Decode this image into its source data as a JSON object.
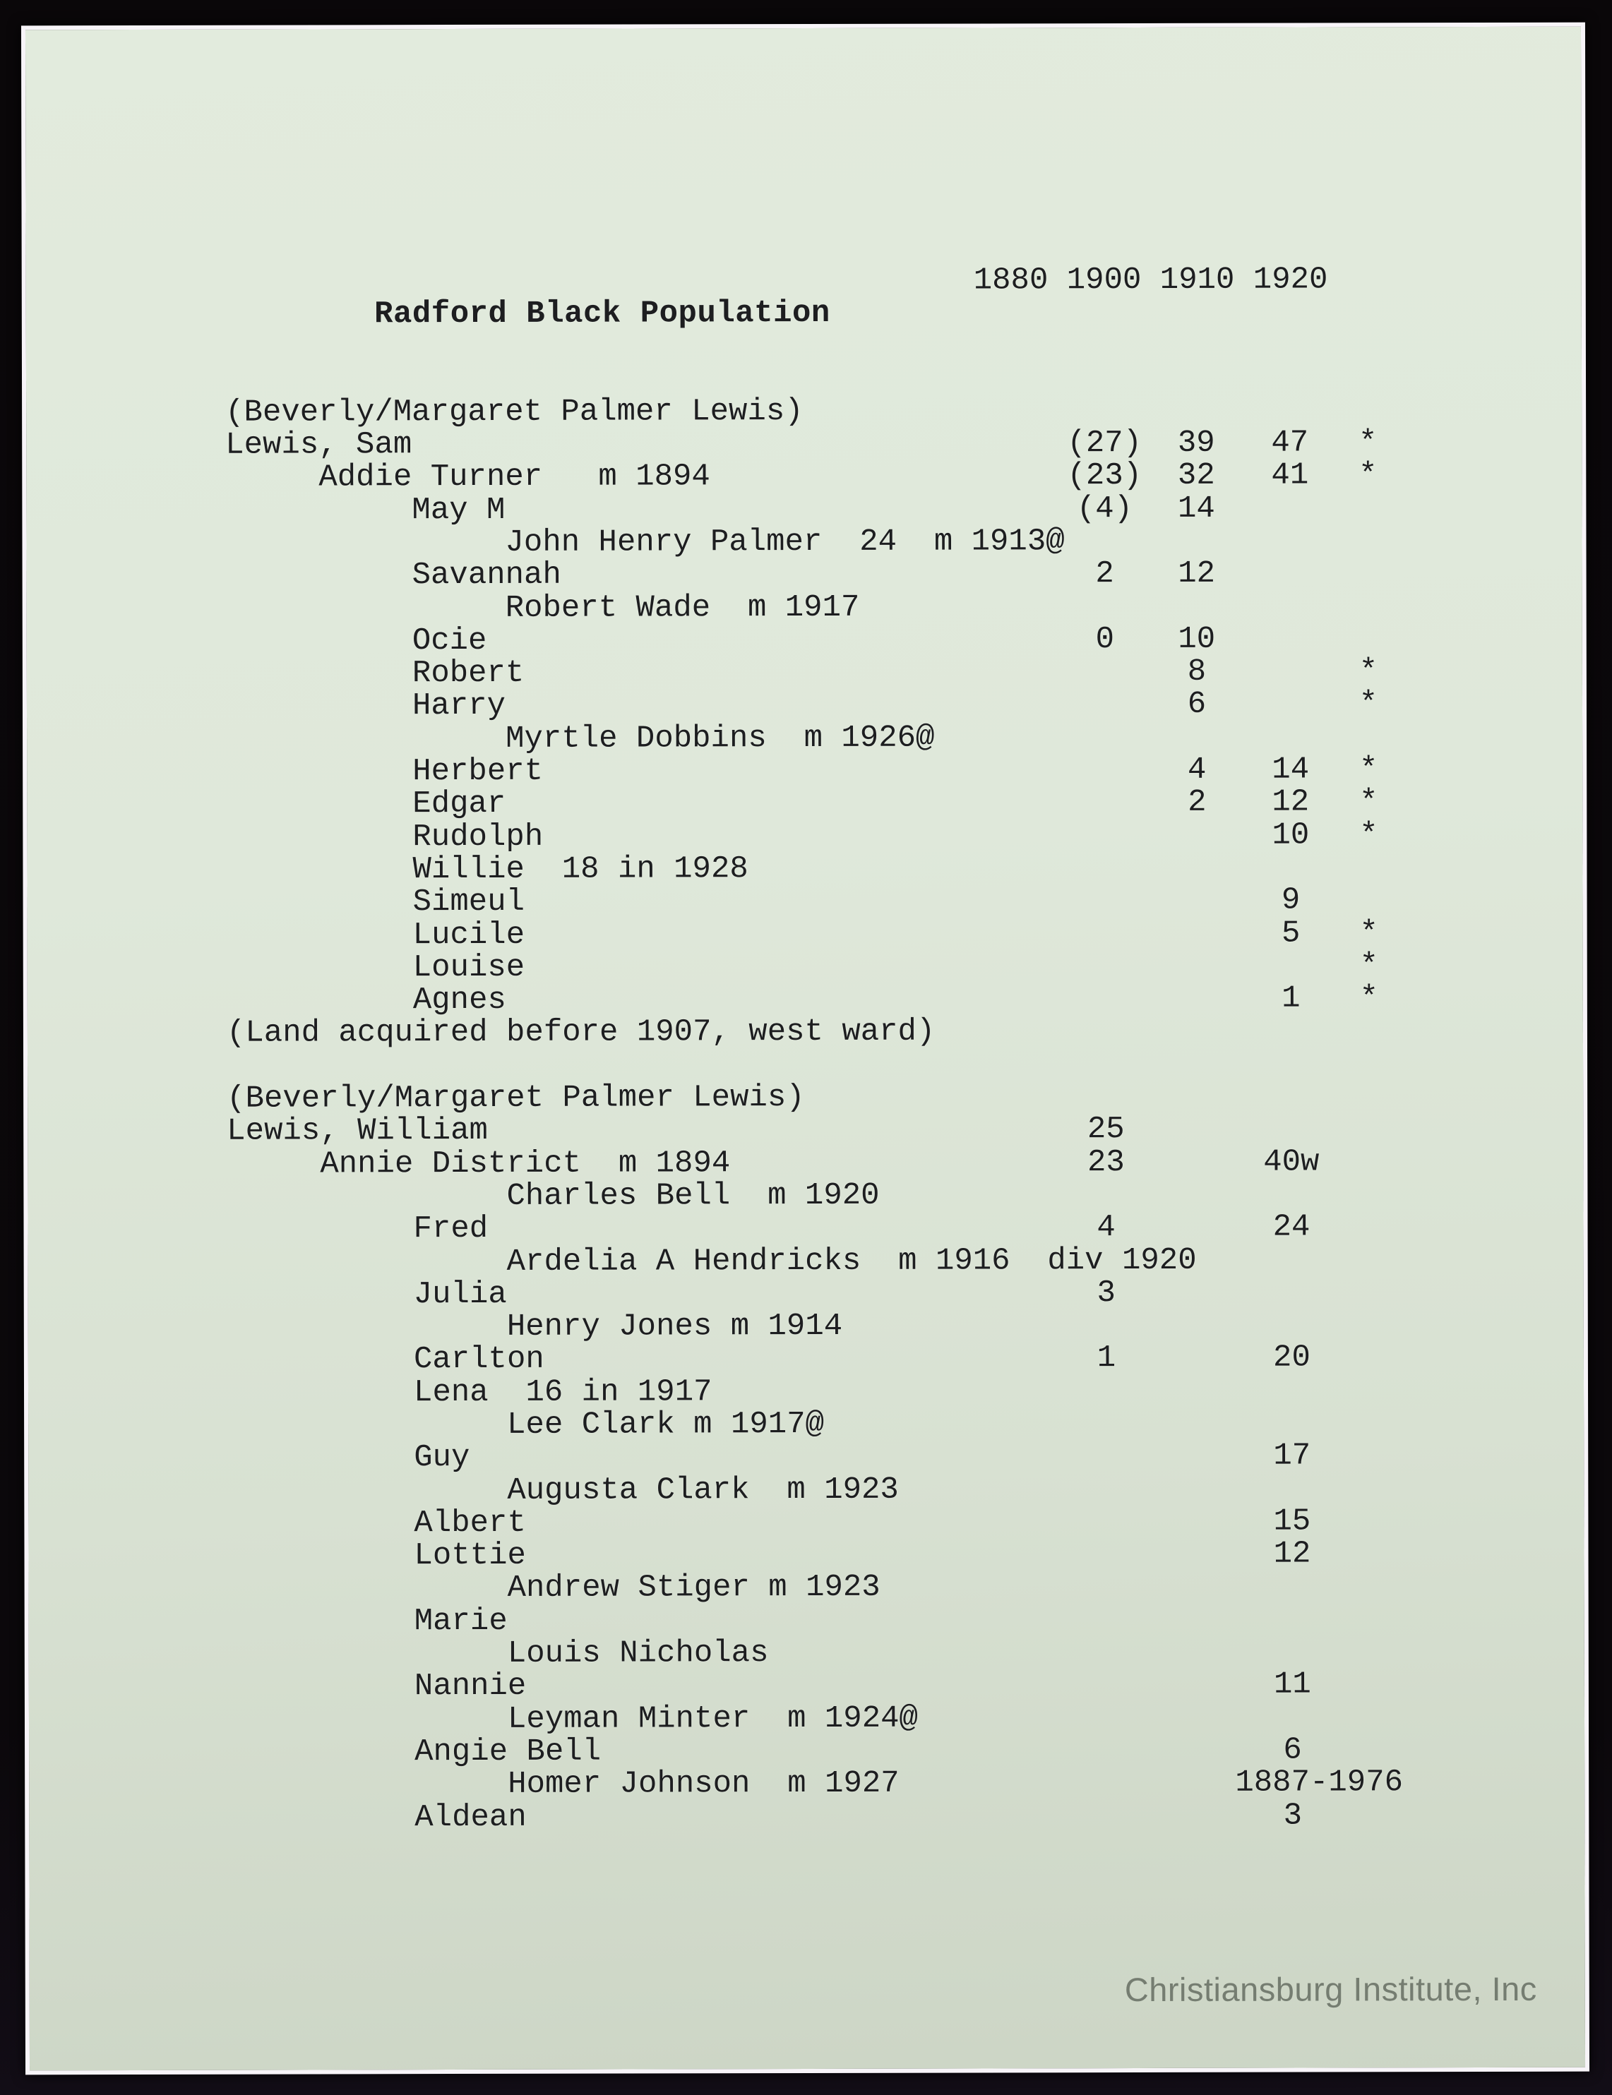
{
  "page": {
    "watermark": "Christiansburg Institute, Inc"
  },
  "header": {
    "title": "Radford Black Population",
    "year_columns": "1880 1900 1910 1920"
  },
  "lines": [
    {
      "blank": true
    },
    {
      "indent": 0,
      "text": "(Beverly/Margaret Palmer Lewis)"
    },
    {
      "indent": 0,
      "text": "Lewis, Sam",
      "vals": [
        {
          "c": 1,
          "t": "(27)"
        },
        {
          "c": 2,
          "t": "39"
        },
        {
          "c": 3,
          "t": "47"
        },
        {
          "c": 4,
          "t": "*"
        }
      ]
    },
    {
      "indent": 5,
      "text": "Addie Turner   m 1894",
      "vals": [
        {
          "c": 1,
          "t": "(23)"
        },
        {
          "c": 2,
          "t": "32"
        },
        {
          "c": 3,
          "t": "41"
        },
        {
          "c": 4,
          "t": "*"
        }
      ]
    },
    {
      "indent": 10,
      "text": "May M",
      "vals": [
        {
          "c": 1,
          "t": "(4)"
        },
        {
          "c": 2,
          "t": "14"
        }
      ]
    },
    {
      "indent": 15,
      "text": "John Henry Palmer  24  m 1913@"
    },
    {
      "indent": 10,
      "text": "Savannah",
      "vals": [
        {
          "c": 1,
          "t": "2"
        },
        {
          "c": 2,
          "t": "12"
        }
      ]
    },
    {
      "indent": 15,
      "text": "Robert Wade  m 1917"
    },
    {
      "indent": 10,
      "text": "Ocie",
      "vals": [
        {
          "c": 1,
          "t": "0"
        },
        {
          "c": 2,
          "t": "10"
        }
      ]
    },
    {
      "indent": 10,
      "text": "Robert",
      "vals": [
        {
          "c": 2,
          "t": "8"
        },
        {
          "c": 4,
          "t": "*"
        }
      ]
    },
    {
      "indent": 10,
      "text": "Harry",
      "vals": [
        {
          "c": 2,
          "t": "6"
        },
        {
          "c": 4,
          "t": "*"
        }
      ]
    },
    {
      "indent": 15,
      "text": "Myrtle Dobbins  m 1926@"
    },
    {
      "indent": 10,
      "text": "Herbert",
      "vals": [
        {
          "c": 2,
          "t": "4"
        },
        {
          "c": 3,
          "t": "14"
        },
        {
          "c": 4,
          "t": "*"
        }
      ]
    },
    {
      "indent": 10,
      "text": "Edgar",
      "vals": [
        {
          "c": 2,
          "t": "2"
        },
        {
          "c": 3,
          "t": "12"
        },
        {
          "c": 4,
          "t": "*"
        }
      ]
    },
    {
      "indent": 10,
      "text": "Rudolph",
      "vals": [
        {
          "c": 3,
          "t": "10"
        },
        {
          "c": 4,
          "t": "*"
        }
      ]
    },
    {
      "indent": 10,
      "text": "Willie  18 in 1928"
    },
    {
      "indent": 10,
      "text": "Simeul",
      "vals": [
        {
          "c": 3,
          "t": "9"
        }
      ]
    },
    {
      "indent": 10,
      "text": "Lucile",
      "vals": [
        {
          "c": 3,
          "t": "5"
        },
        {
          "c": 4,
          "t": "*"
        }
      ]
    },
    {
      "indent": 10,
      "text": "Louise",
      "vals": [
        {
          "c": 4,
          "t": "*"
        }
      ]
    },
    {
      "indent": 10,
      "text": "Agnes",
      "vals": [
        {
          "c": 3,
          "t": "1"
        },
        {
          "c": 4,
          "t": "*"
        }
      ]
    },
    {
      "indent": 0,
      "text": "(Land acquired before 1907, west ward)"
    },
    {
      "blank": true
    },
    {
      "indent": 0,
      "text": "(Beverly/Margaret Palmer Lewis)"
    },
    {
      "indent": 0,
      "text": "Lewis, William",
      "vals": [
        {
          "c": 1,
          "t": "25"
        }
      ]
    },
    {
      "indent": 5,
      "text": "Annie District  m 1894",
      "vals": [
        {
          "c": 1,
          "t": "23"
        },
        {
          "c": 3,
          "t": "40w"
        }
      ]
    },
    {
      "indent": 15,
      "text": "Charles Bell  m 1920"
    },
    {
      "indent": 10,
      "text": "Fred",
      "vals": [
        {
          "c": 1,
          "t": "4"
        },
        {
          "c": 3,
          "t": "24"
        }
      ]
    },
    {
      "indent": 15,
      "text": "Ardelia A Hendricks  m 1916  div 1920"
    },
    {
      "indent": 10,
      "text": "Julia",
      "vals": [
        {
          "c": 1,
          "t": "3"
        }
      ]
    },
    {
      "indent": 15,
      "text": "Henry Jones m 1914"
    },
    {
      "indent": 10,
      "text": "Carlton",
      "vals": [
        {
          "c": 1,
          "t": "1"
        },
        {
          "c": 3,
          "t": "20"
        }
      ]
    },
    {
      "indent": 10,
      "text": "Lena  16 in 1917"
    },
    {
      "indent": 15,
      "text": "Lee Clark m 1917@"
    },
    {
      "indent": 10,
      "text": "Guy",
      "vals": [
        {
          "c": 3,
          "t": "17"
        }
      ]
    },
    {
      "indent": 15,
      "text": "Augusta Clark  m 1923"
    },
    {
      "indent": 10,
      "text": "Albert",
      "vals": [
        {
          "c": 3,
          "t": "15"
        }
      ]
    },
    {
      "indent": 10,
      "text": "Lottie",
      "vals": [
        {
          "c": 3,
          "t": "12"
        }
      ]
    },
    {
      "indent": 15,
      "text": "Andrew Stiger m 1923"
    },
    {
      "indent": 10,
      "text": "Marie"
    },
    {
      "indent": 15,
      "text": "Louis Nicholas"
    },
    {
      "indent": 10,
      "text": "Nannie",
      "vals": [
        {
          "c": 3,
          "t": "11"
        }
      ]
    },
    {
      "indent": 15,
      "text": "Leyman Minter  m 1924@"
    },
    {
      "indent": 10,
      "text": "Angie Bell",
      "vals": [
        {
          "c": 3,
          "t": "6"
        }
      ]
    },
    {
      "indent": 15,
      "text": "Homer Johnson  m 1927",
      "vals": [
        {
          "c": 3,
          "t": "1887-1976",
          "wide": true
        }
      ]
    },
    {
      "indent": 10,
      "text": "Aldean",
      "vals": [
        {
          "c": 3,
          "t": "3"
        }
      ]
    }
  ]
}
